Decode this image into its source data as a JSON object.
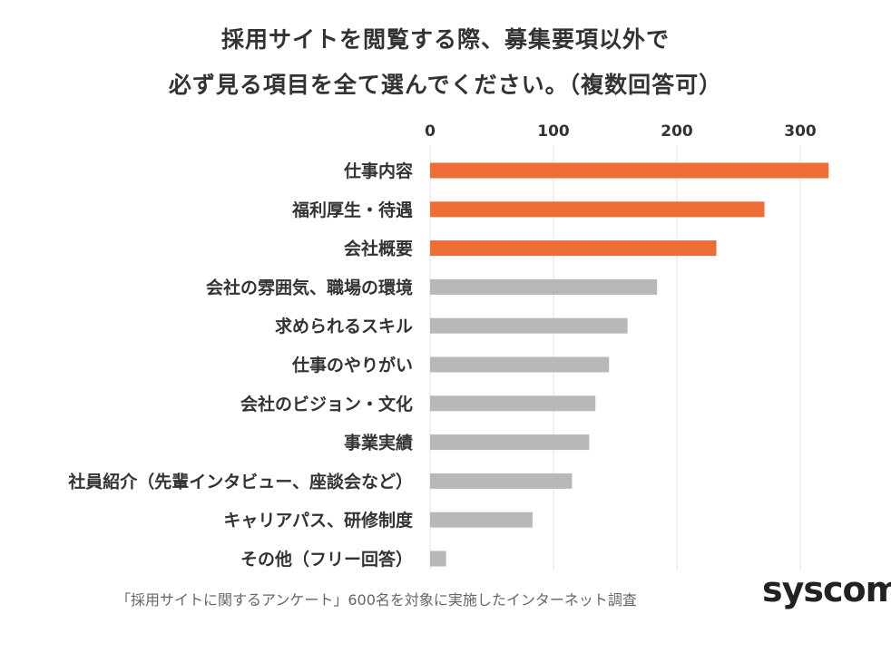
{
  "chart_data": {
    "type": "bar",
    "orientation": "horizontal",
    "title_lines": [
      "採用サイトを閲覧する際、募集要項以外で",
      "必ず見る項目を全て選んでください。（複数回答可）"
    ],
    "categories": [
      "仕事内容",
      "福利厚生・待遇",
      "会社概要",
      "会社の雰囲気、職場の環境",
      "求められるスキル",
      "仕事のやりがい",
      "会社のビジョン・文化",
      "事業実績",
      "社員紹介（先輩インタビュー、座談会など）",
      "キャリアパス、研修制度",
      "その他（フリー回答）"
    ],
    "values": [
      323,
      271,
      232,
      184,
      160,
      145,
      134,
      129,
      115,
      83,
      13
    ],
    "colors": [
      "#ee6c35",
      "#ee6c35",
      "#ee6c35",
      "#b9b7b8",
      "#b9b7b8",
      "#b9b7b8",
      "#b9b7b8",
      "#b9b7b8",
      "#b9b7b8",
      "#b9b7b8",
      "#b9b7b8"
    ],
    "xlim": [
      0,
      330
    ],
    "xticks": [
      0,
      100,
      200,
      300
    ],
    "grid": true,
    "axis_position": "top"
  },
  "footnote": "「採用サイトに関するアンケート」600名を対象に実施したインターネット調査",
  "logo": {
    "text": "syscom"
  }
}
